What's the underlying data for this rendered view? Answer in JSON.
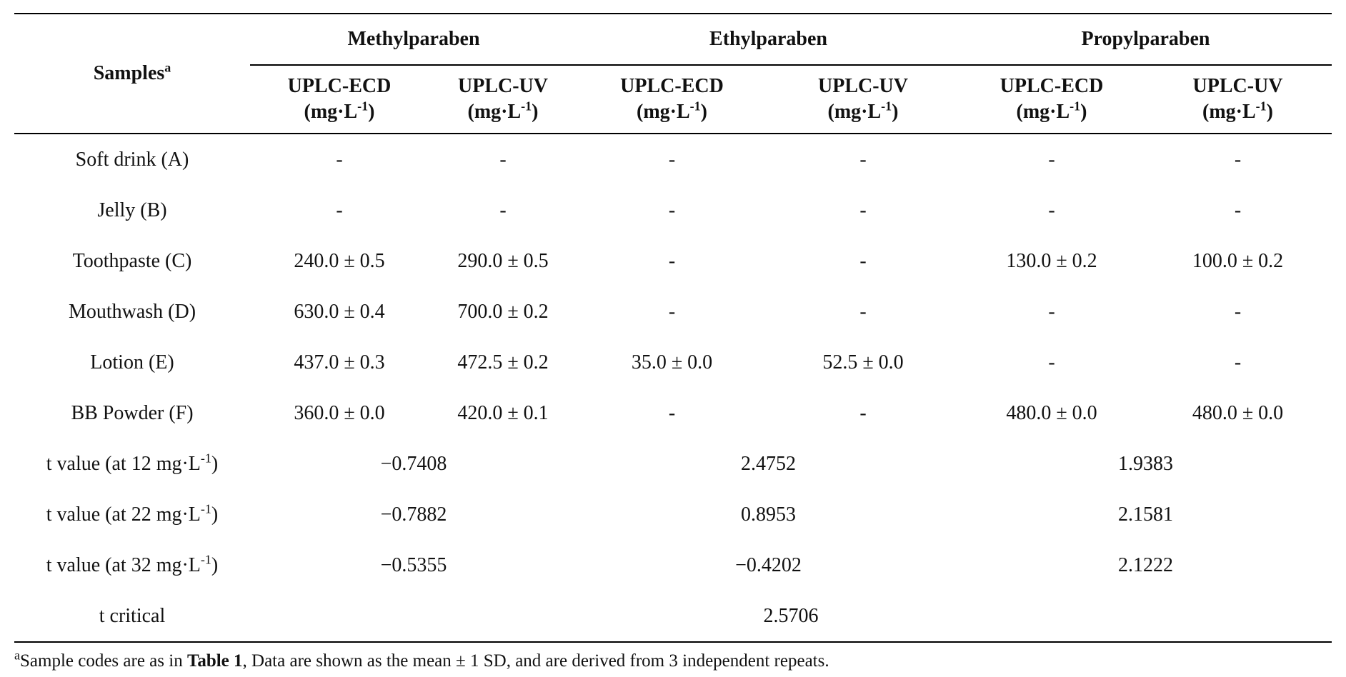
{
  "table": {
    "samples_header": "Samples",
    "samples_sup": "a",
    "groups": [
      "Methylparaben",
      "Ethylparaben",
      "Propylparaben"
    ],
    "subheaders": [
      {
        "method": "UPLC-ECD",
        "unit": "(mg·L",
        "exp": "-1",
        "close": ")"
      },
      {
        "method": "UPLC-UV",
        "unit": "(mg·L",
        "exp": "-1",
        "close": ")"
      },
      {
        "method": "UPLC-ECD",
        "unit": "(mg·L",
        "exp": "-1",
        "close": ")"
      },
      {
        "method": "UPLC-UV",
        "unit": "(mg·L",
        "exp": "-1",
        "close": ")"
      },
      {
        "method": "UPLC-ECD",
        "unit": "(mg·L",
        "exp": "-1",
        "close": ")"
      },
      {
        "method": "UPLC-UV",
        "unit": "(mg·L",
        "exp": "-1",
        "close": ")"
      }
    ],
    "rows": [
      {
        "sample": "Soft drink (A)",
        "values": [
          "-",
          "-",
          "-",
          "-",
          "-",
          "-"
        ]
      },
      {
        "sample": "Jelly (B)",
        "values": [
          "-",
          "-",
          "-",
          "-",
          "-",
          "-"
        ]
      },
      {
        "sample": "Toothpaste (C)",
        "values": [
          "240.0 ± 0.5",
          "290.0 ± 0.5",
          "-",
          "-",
          "130.0 ± 0.2",
          "100.0 ± 0.2"
        ]
      },
      {
        "sample": "Mouthwash (D)",
        "values": [
          "630.0 ± 0.4",
          "700.0 ± 0.2",
          "-",
          "-",
          "-",
          "-"
        ]
      },
      {
        "sample": "Lotion (E)",
        "values": [
          "437.0 ± 0.3",
          "472.5 ± 0.2",
          "35.0 ± 0.0",
          "52.5 ± 0.0",
          "-",
          "-"
        ]
      },
      {
        "sample": "BB Powder (F)",
        "values": [
          "360.0 ± 0.0",
          "420.0 ± 0.1",
          "-",
          "-",
          "480.0 ± 0.0",
          "480.0 ± 0.0"
        ]
      }
    ],
    "t_rows": [
      {
        "label": "t value (at 12 mg·L",
        "exp": "-1",
        "close": ")",
        "values": [
          "−0.7408",
          "2.4752",
          "1.9383"
        ]
      },
      {
        "label": "t value (at 22 mg·L",
        "exp": "-1",
        "close": ")",
        "values": [
          "−0.7882",
          "0.8953",
          "2.1581"
        ]
      },
      {
        "label": "t value (at 32 mg·L",
        "exp": "-1",
        "close": ")",
        "values": [
          "−0.5355",
          "−0.4202",
          "2.1222"
        ]
      }
    ],
    "t_critical": {
      "label": "t critical",
      "value": "2.5706"
    }
  },
  "footnote": {
    "sup": "a",
    "before": "Sample codes are as in ",
    "bold": "Table 1",
    "after": ", Data are shown as the mean ± 1 SD, and are derived from 3 independent repeats."
  }
}
